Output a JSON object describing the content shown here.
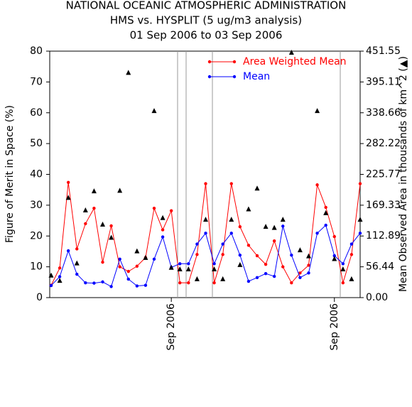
{
  "chart_data": {
    "type": "line",
    "title": "NATIONAL OCEANIC ATMOSPHERIC ADMINISTRATION",
    "subtitle": "HMS vs. HYSPLIT (5 ug/m3 analysis)",
    "period": "01 Sep 2006 to 03 Sep 2006",
    "y_label": "Figure of Merit in Space (%)",
    "y2_label": "Mean Observed Area in thousands of km^2 (▲)",
    "categories": [
      null,
      null,
      null,
      null,
      null,
      null,
      null,
      null,
      null,
      null,
      null,
      null,
      null,
      null,
      "Sep 2006",
      null,
      null,
      null,
      null,
      null,
      null,
      null,
      null,
      null,
      null,
      null,
      null,
      null,
      null,
      null,
      null,
      null,
      null,
      "Sep 2006",
      null,
      null,
      null
    ],
    "series": [
      {
        "name": "Area Weighted Mean",
        "color": "#ff0000",
        "marker": "circle",
        "values": [
          4,
          9.6,
          37.4,
          15.8,
          24,
          29,
          11.5,
          23.3,
          10,
          8.5,
          10.2,
          13,
          29,
          22,
          28.2,
          4.8,
          4.8,
          14,
          37,
          4.8,
          14,
          37,
          23,
          17,
          13.6,
          10.8,
          18.4,
          10,
          4.8,
          8,
          10.5,
          36.6,
          29.3,
          19.8,
          4.8,
          14,
          37
        ]
      },
      {
        "name": "Mean",
        "color": "#0000ff",
        "marker": "circle",
        "values": [
          3.9,
          6.8,
          15.2,
          7.6,
          4.8,
          4.7,
          5.1,
          3.6,
          12.5,
          6,
          3.8,
          4,
          12.5,
          19.7,
          9.8,
          11,
          11,
          17.4,
          20.9,
          11,
          17.4,
          20.9,
          13.8,
          5.3,
          6.5,
          7.8,
          6.9,
          23.2,
          13.8,
          6.5,
          8,
          20.9,
          23.5,
          13.6,
          11,
          17.4,
          20.9
        ]
      },
      {
        "color": "#000000",
        "marker": "triangle",
        "axis": "y2",
        "values": [
          40.6,
          31,
          183,
          63,
          160,
          195,
          134,
          110,
          196,
          412,
          85,
          73,
          342,
          146,
          55,
          52,
          52,
          34,
          143,
          52,
          34,
          143,
          60,
          162,
          200,
          130,
          128,
          143,
          449,
          87,
          76,
          342,
          155,
          71,
          52,
          34,
          143
        ]
      }
    ],
    "ylim": [
      0,
      80
    ],
    "yticks": [
      0,
      10,
      20,
      30,
      40,
      50,
      60,
      70,
      80
    ],
    "y2lim": [
      0,
      451.55
    ],
    "y2ticks": [
      {
        "value": 0,
        "label": "0.00"
      },
      56.44,
      112.89,
      169.33,
      225.77,
      282.22,
      338.66,
      395.11,
      451.55
    ],
    "legend": "top-right"
  }
}
